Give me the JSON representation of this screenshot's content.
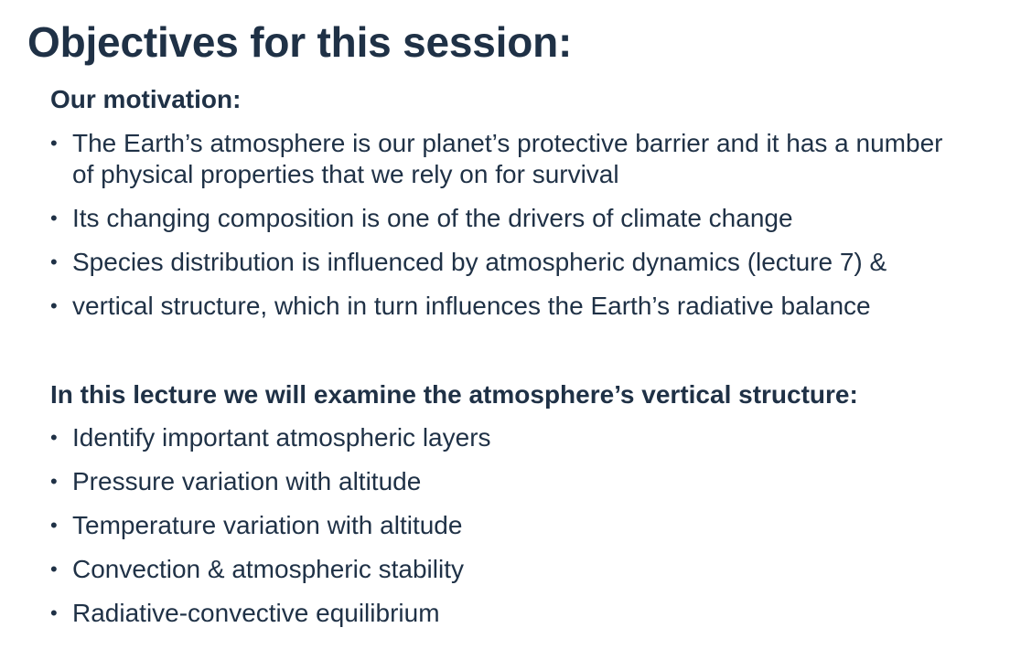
{
  "slide": {
    "title": "Objectives for this session:",
    "motivation": {
      "heading": "Our motivation:",
      "bullets": [
        "The Earth’s atmosphere is our planet’s protective barrier and it has a number of physical properties that we rely on for survival",
        "Its changing composition is one of the drivers of climate change",
        "Species distribution is influenced by atmospheric dynamics (lecture 7) &",
        "vertical structure, which in turn influences the Earth’s radiative balance"
      ]
    },
    "lecture": {
      "heading": "In this lecture we will examine the atmosphere’s vertical structure:",
      "bullets": [
        "Identify important atmospheric layers",
        "Pressure variation with altitude",
        "Temperature variation with altitude",
        "Convection & atmospheric stability",
        "Radiative-convective equilibrium"
      ]
    },
    "bullet_char": "•"
  }
}
